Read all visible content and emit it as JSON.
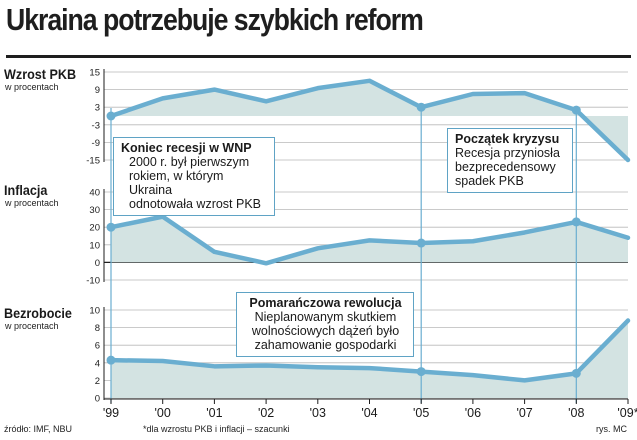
{
  "title": "Ukraina potrzebuje szybkich reform",
  "footer": {
    "source": "źródło: IMF, NBU",
    "note": "*dla wzrostu PKB i inflacji – szacunki",
    "credit": "rys. MC"
  },
  "colors": {
    "line": "#6aaed0",
    "fill": "#d3e3e2",
    "grid": "#b9b9b9",
    "box_border": "#5fa3c5"
  },
  "annotations": [
    {
      "title": "Koniec recesji w WNP",
      "lines": [
        "2000 r. był pierwszym",
        "rokiem, w którym Ukraina",
        "odnotowała wzrost PKB"
      ]
    },
    {
      "title": "Początek kryzysu",
      "lines": [
        "Recesja przyniosła",
        "bezprecedensowy",
        "spadek PKB"
      ]
    },
    {
      "title": "Pomarańczowa rewolucja",
      "lines": [
        "Nieplanowanym skutkiem",
        "wolnościowych dążeń było",
        "zahamowanie gospodarki"
      ]
    }
  ],
  "chart_data": [
    {
      "type": "area",
      "title": "Wzrost PKB",
      "subtitle": "w procentach",
      "x": [
        "'99",
        "'00",
        "'01",
        "'02",
        "'03",
        "'04",
        "'05",
        "'06",
        "'07",
        "'08",
        "'09*"
      ],
      "values": [
        0,
        6,
        9,
        5,
        9.5,
        12,
        3,
        7.5,
        7.8,
        2,
        -15
      ],
      "yticks": [
        15,
        9,
        3,
        -3,
        -9,
        -15
      ],
      "ylim": [
        -15,
        15
      ],
      "markers": [
        "'99",
        "'05",
        "'08"
      ]
    },
    {
      "type": "area",
      "title": "Inflacja",
      "subtitle": "w procentach",
      "x": [
        "'99",
        "'00",
        "'01",
        "'02",
        "'03",
        "'04",
        "'05",
        "'06",
        "'07",
        "'08",
        "'09*"
      ],
      "values": [
        20,
        26,
        6,
        -0.5,
        8,
        12.5,
        11,
        12,
        17,
        23,
        14
      ],
      "yticks": [
        40,
        30,
        20,
        10,
        0,
        -10
      ],
      "ylim": [
        -10,
        40
      ],
      "markers": [
        "'99",
        "'05",
        "'08"
      ]
    },
    {
      "type": "area",
      "title": "Bezrobocie",
      "subtitle": "w procentach",
      "x": [
        "'99",
        "'00",
        "'01",
        "'02",
        "'03",
        "'04",
        "'05",
        "'06",
        "'07",
        "'08",
        "'09*"
      ],
      "values": [
        4.3,
        4.2,
        3.6,
        3.7,
        3.5,
        3.4,
        3.0,
        2.6,
        2.0,
        2.8,
        8.8
      ],
      "yticks": [
        10,
        8,
        6,
        4,
        2,
        0
      ],
      "ylim": [
        0,
        10
      ],
      "markers": [
        "'99",
        "'05",
        "'08"
      ]
    }
  ]
}
